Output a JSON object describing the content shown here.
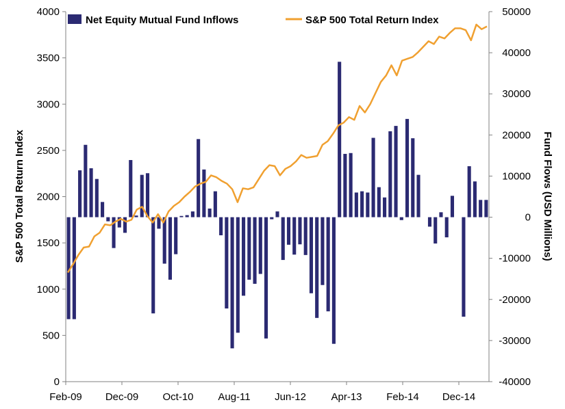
{
  "chart_data": {
    "type": "bar+line",
    "title": "",
    "legend": {
      "placement": "top",
      "entries": [
        "Net Equity Mutual Fund Inflows",
        "S&P 500 Total Return Index"
      ]
    },
    "x_tick_labels": [
      "Feb-09",
      "Dec-09",
      "Oct-10",
      "Aug-11",
      "Jun-12",
      "Apr-13",
      "Feb-14",
      "Dec-14"
    ],
    "left_axis": {
      "label": "S&P 500 Total Return Index",
      "range": [
        0,
        4000
      ],
      "ticks": [
        0,
        500,
        1000,
        1500,
        2000,
        2500,
        3000,
        3500,
        4000
      ]
    },
    "right_axis": {
      "label": "Fund Flows (USD Millions)",
      "range": [
        -40000,
        50000
      ],
      "ticks": [
        -40000,
        -30000,
        -20000,
        -10000,
        0,
        10000,
        20000,
        30000,
        40000,
        50000
      ]
    },
    "colors": {
      "bars": "#2b2a72",
      "line": "#f0a030",
      "axis": "#808080"
    },
    "series": [
      {
        "name": "Net Equity Mutual Fund Inflows",
        "type": "bar",
        "axis": "right",
        "values": [
          -24800,
          -24800,
          11400,
          17600,
          11900,
          9300,
          3700,
          -1000,
          -7500,
          -2500,
          -3800,
          13900,
          400,
          10300,
          10700,
          -23400,
          -2800,
          -11300,
          -15200,
          -9000,
          300,
          500,
          1400,
          19000,
          11600,
          2100,
          6300,
          -4400,
          -22200,
          -31900,
          -28100,
          -19100,
          -15200,
          -16200,
          -13800,
          -29500,
          -500,
          1400,
          -10400,
          -6700,
          -9100,
          -6600,
          -9200,
          -18500,
          -24500,
          -16500,
          -22900,
          -30800,
          37800,
          15400,
          15600,
          6000,
          6300,
          6000,
          19300,
          7300,
          4800,
          20900,
          22200,
          -700,
          23900,
          19200,
          10300,
          0,
          -2300,
          -6400,
          1200,
          -4900,
          5200,
          0,
          -24200,
          12400,
          8700,
          4200,
          4200
        ]
      },
      {
        "name": "S&P 500 Total Return Index",
        "type": "line",
        "axis": "left",
        "values": [
          1180,
          1270,
          1370,
          1450,
          1460,
          1570,
          1610,
          1700,
          1690,
          1730,
          1760,
          1730,
          1750,
          1860,
          1890,
          1790,
          1720,
          1810,
          1720,
          1840,
          1900,
          1940,
          2000,
          2050,
          2110,
          2140,
          2160,
          2230,
          2210,
          2170,
          2140,
          2080,
          1940,
          2090,
          2080,
          2100,
          2190,
          2280,
          2340,
          2330,
          2230,
          2300,
          2330,
          2380,
          2450,
          2420,
          2430,
          2440,
          2560,
          2600,
          2680,
          2770,
          2800,
          2860,
          2830,
          2980,
          2910,
          3000,
          3120,
          3240,
          3310,
          3420,
          3310,
          3470,
          3490,
          3510,
          3560,
          3620,
          3680,
          3650,
          3730,
          3710,
          3770,
          3820,
          3820,
          3800,
          3690,
          3860,
          3810,
          3840
        ]
      }
    ]
  }
}
